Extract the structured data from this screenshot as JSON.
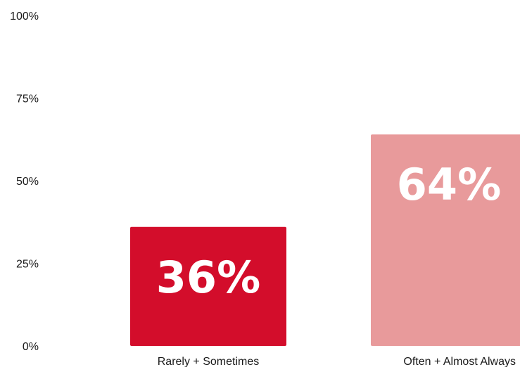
{
  "chart_data": {
    "type": "bar",
    "categories": [
      "Rarely + Sometimes",
      "Often + Almost Always"
    ],
    "values": [
      36,
      64
    ],
    "data_labels": [
      "36%",
      "64%"
    ],
    "colors": [
      "#d30d2b",
      "#e89a9b"
    ],
    "y_ticks": [
      {
        "value": 0,
        "label": "0%"
      },
      {
        "value": 25,
        "label": "25%"
      },
      {
        "value": 50,
        "label": "50%"
      },
      {
        "value": 75,
        "label": "75%"
      },
      {
        "value": 100,
        "label": "100%"
      }
    ],
    "ylim": [
      0,
      100
    ],
    "grid": false,
    "legend": "none"
  }
}
